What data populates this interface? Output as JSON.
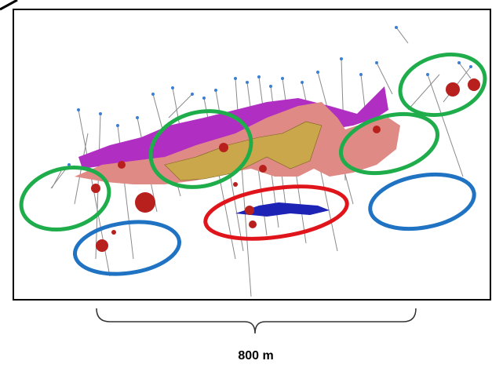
{
  "scale_label": "800 m"
}
